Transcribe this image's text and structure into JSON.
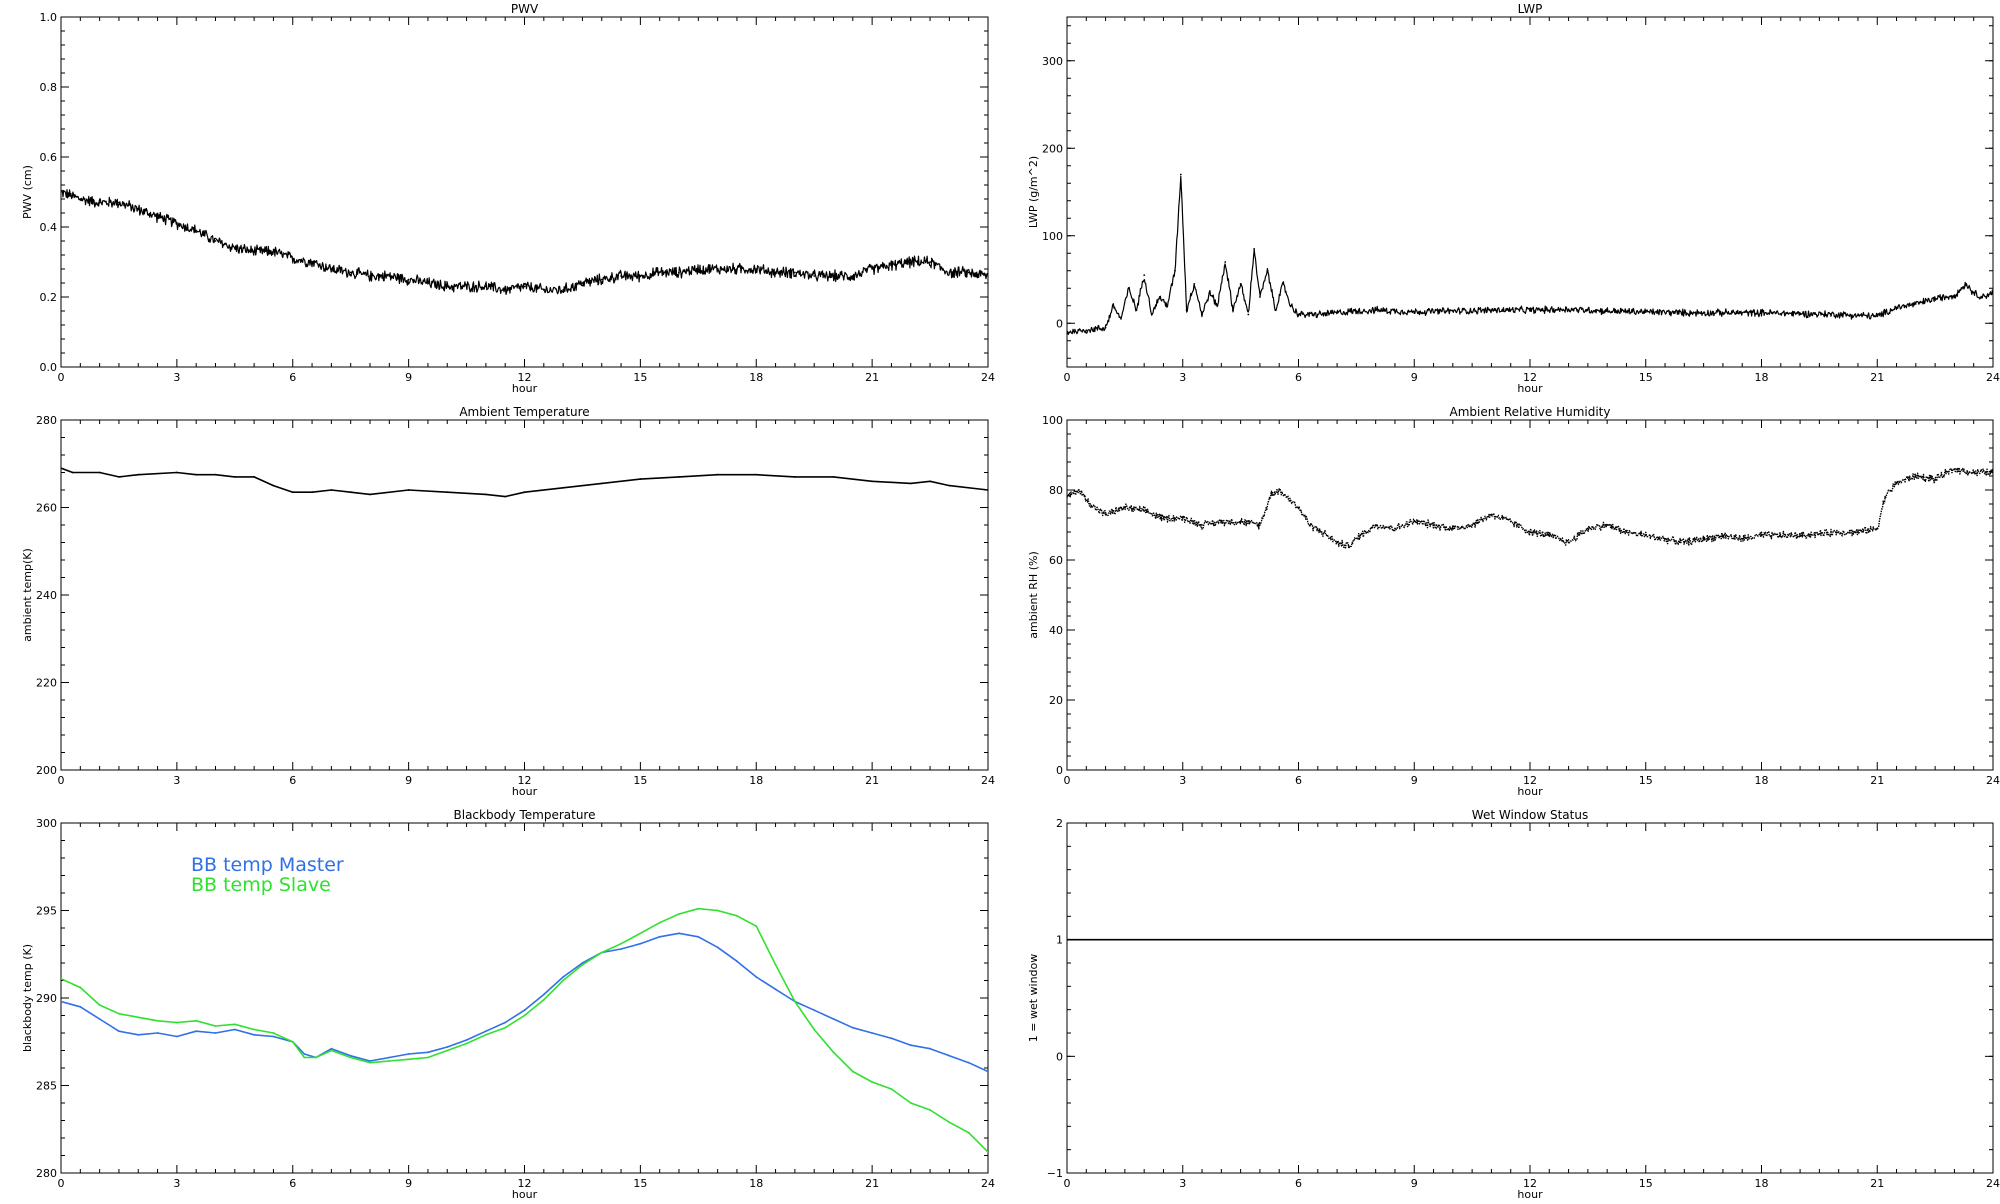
{
  "chart_data": [
    {
      "id": "pwv",
      "type": "line",
      "title": "PWV",
      "xlabel": "hour",
      "ylabel": "PWV (cm)",
      "xlim": [
        0,
        24
      ],
      "ylim": [
        0.0,
        1.0
      ],
      "xticks": [
        "0",
        "3",
        "6",
        "9",
        "12",
        "15",
        "18",
        "21",
        "24"
      ],
      "yticks": [
        "0.0",
        "0.2",
        "0.4",
        "0.6",
        "0.8",
        "1.0"
      ],
      "noise": 0.012,
      "series": [
        {
          "name": "",
          "color": "#000000",
          "x": [
            0,
            0.5,
            1,
            1.5,
            2,
            2.5,
            3,
            3.5,
            4,
            4.5,
            5,
            5.5,
            6,
            6.5,
            7,
            7.5,
            8,
            8.5,
            9,
            9.5,
            10,
            10.5,
            11,
            11.5,
            12,
            12.5,
            13,
            13.5,
            14,
            14.5,
            15,
            15.5,
            16,
            16.5,
            17,
            17.5,
            18,
            18.5,
            19,
            19.5,
            20,
            20.5,
            21,
            21.5,
            22,
            22.5,
            23,
            23.5,
            24
          ],
          "y": [
            0.5,
            0.48,
            0.47,
            0.47,
            0.45,
            0.43,
            0.41,
            0.39,
            0.36,
            0.34,
            0.33,
            0.33,
            0.31,
            0.3,
            0.28,
            0.27,
            0.26,
            0.26,
            0.25,
            0.24,
            0.23,
            0.23,
            0.23,
            0.22,
            0.23,
            0.22,
            0.22,
            0.24,
            0.25,
            0.26,
            0.26,
            0.27,
            0.27,
            0.28,
            0.28,
            0.28,
            0.28,
            0.27,
            0.27,
            0.26,
            0.26,
            0.26,
            0.28,
            0.29,
            0.3,
            0.3,
            0.27,
            0.27,
            0.26
          ]
        }
      ]
    },
    {
      "id": "lwp",
      "type": "line",
      "title": "LWP",
      "xlabel": "hour",
      "ylabel": "LWP (g/m^2)",
      "xlim": [
        0,
        24
      ],
      "ylim": [
        -50,
        350
      ],
      "xticks": [
        "0",
        "3",
        "6",
        "9",
        "12",
        "15",
        "18",
        "21",
        "24"
      ],
      "yticks": [
        "0",
        "100",
        "200",
        "300"
      ],
      "noise": 3,
      "series": [
        {
          "name": "",
          "color": "#000000",
          "x": [
            0,
            0.5,
            1,
            1.2,
            1.4,
            1.6,
            1.8,
            2,
            2.2,
            2.4,
            2.6,
            2.8,
            2.95,
            3.1,
            3.3,
            3.5,
            3.7,
            3.9,
            4.1,
            4.3,
            4.5,
            4.7,
            4.85,
            5,
            5.2,
            5.4,
            5.6,
            5.8,
            6,
            6.5,
            7,
            7.5,
            8,
            9,
            10,
            11,
            12,
            13,
            14,
            15,
            16,
            17,
            18,
            19,
            20,
            20.5,
            21,
            21.5,
            22,
            22.5,
            23,
            23.3,
            23.5,
            23.7,
            24
          ],
          "y": [
            -10,
            -8,
            -5,
            20,
            5,
            40,
            15,
            55,
            10,
            30,
            20,
            60,
            170,
            15,
            45,
            10,
            35,
            20,
            70,
            15,
            45,
            10,
            85,
            30,
            60,
            15,
            45,
            20,
            10,
            10,
            12,
            14,
            15,
            13,
            14,
            15,
            15,
            16,
            14,
            13,
            12,
            12,
            12,
            11,
            10,
            9,
            8,
            18,
            22,
            28,
            32,
            45,
            35,
            30,
            35
          ]
        }
      ]
    },
    {
      "id": "ambtemp",
      "type": "line",
      "title": "Ambient Temperature",
      "xlabel": "hour",
      "ylabel": "ambient temp(K)",
      "xlim": [
        0,
        24
      ],
      "ylim": [
        200,
        280
      ],
      "xticks": [
        "0",
        "3",
        "6",
        "9",
        "12",
        "15",
        "18",
        "21",
        "24"
      ],
      "yticks": [
        "200",
        "220",
        "240",
        "260",
        "280"
      ],
      "noise": 0,
      "series": [
        {
          "name": "",
          "color": "#000000",
          "x": [
            0,
            0.3,
            1,
            1.5,
            2,
            3,
            3.5,
            4,
            4.5,
            5,
            5.5,
            6,
            6.5,
            7,
            7.5,
            8,
            9,
            10,
            11,
            11.5,
            12,
            13,
            14,
            15,
            16,
            17,
            18,
            19,
            20,
            21,
            22,
            22.5,
            23,
            24
          ],
          "y": [
            269,
            268,
            268,
            267,
            267.5,
            268,
            267.5,
            267.5,
            267,
            267,
            265,
            263.5,
            263.5,
            264,
            263.5,
            263,
            264,
            263.5,
            263,
            262.5,
            263.5,
            264.5,
            265.5,
            266.5,
            267,
            267.5,
            267.5,
            267,
            267,
            266,
            265.5,
            266,
            265,
            264
          ]
        }
      ]
    },
    {
      "id": "ambrh",
      "type": "scatter",
      "title": "Ambient Relative Humidity",
      "xlabel": "hour",
      "ylabel": "ambient RH (%)",
      "xlim": [
        0,
        24
      ],
      "ylim": [
        0,
        100
      ],
      "xticks": [
        "0",
        "3",
        "6",
        "9",
        "12",
        "15",
        "18",
        "21",
        "24"
      ],
      "yticks": [
        "0",
        "20",
        "40",
        "60",
        "80",
        "100"
      ],
      "noise": 0.8,
      "series": [
        {
          "name": "",
          "color": "#000000",
          "x": [
            0,
            0.3,
            0.6,
            1,
            1.5,
            2,
            2.5,
            3,
            3.5,
            4,
            4.5,
            5,
            5.3,
            5.5,
            5.8,
            6,
            6.3,
            6.6,
            7,
            7.3,
            7.6,
            8,
            8.5,
            9,
            9.5,
            10,
            10.5,
            11,
            11.5,
            12,
            12.5,
            13,
            13.5,
            14,
            14.5,
            15,
            15.5,
            16,
            16.5,
            17,
            17.5,
            18,
            19,
            20,
            20.5,
            21,
            21.2,
            21.5,
            22,
            22.5,
            23,
            23.5,
            24
          ],
          "y": [
            78,
            80,
            76,
            73,
            75,
            74,
            72,
            72,
            70,
            71,
            71,
            70,
            79,
            80,
            77,
            75,
            70,
            68,
            65,
            64,
            67,
            70,
            69,
            71,
            70,
            69,
            70,
            73,
            71,
            68,
            67,
            65,
            69,
            70,
            68,
            67,
            66,
            65,
            66,
            67,
            66,
            67,
            67,
            68,
            68,
            69,
            78,
            82,
            84,
            83,
            86,
            85,
            85
          ]
        }
      ]
    },
    {
      "id": "bbtemp",
      "type": "line",
      "title": "Blackbody Temperature",
      "xlabel": "hour",
      "ylabel": "blackbody temp (K)",
      "xlim": [
        0,
        24
      ],
      "ylim": [
        280,
        300
      ],
      "xticks": [
        "0",
        "3",
        "6",
        "9",
        "12",
        "15",
        "18",
        "21",
        "24"
      ],
      "yticks": [
        "280",
        "285",
        "290",
        "295",
        "300"
      ],
      "legend": "top-left",
      "noise": 0,
      "series": [
        {
          "name": "BB temp Master",
          "color": "#3070e8",
          "x": [
            0,
            0.5,
            1,
            1.5,
            2,
            2.5,
            3,
            3.5,
            4,
            4.5,
            5,
            5.5,
            6,
            6.3,
            6.6,
            7,
            7.5,
            8,
            8.5,
            9,
            9.5,
            10,
            10.5,
            11,
            11.5,
            12,
            12.5,
            13,
            13.5,
            14,
            14.5,
            15,
            15.5,
            16,
            16.5,
            17,
            17.5,
            18,
            18.5,
            19,
            19.5,
            20,
            20.5,
            21,
            21.5,
            22,
            22.5,
            23,
            23.5,
            24
          ],
          "y": [
            289.8,
            289.5,
            288.8,
            288.1,
            287.9,
            288,
            287.8,
            288.1,
            288,
            288.2,
            287.9,
            287.8,
            287.5,
            286.8,
            286.6,
            287.1,
            286.7,
            286.4,
            286.6,
            286.8,
            286.9,
            287.2,
            287.6,
            288.1,
            288.6,
            289.3,
            290.2,
            291.2,
            292,
            292.6,
            292.8,
            293.1,
            293.5,
            293.7,
            293.5,
            292.9,
            292.1,
            291.2,
            290.5,
            289.8,
            289.3,
            288.8,
            288.3,
            288,
            287.7,
            287.3,
            287.1,
            286.7,
            286.3,
            285.8
          ]
        },
        {
          "name": "BB temp Slave",
          "color": "#30e030",
          "x": [
            0,
            0.5,
            1,
            1.5,
            2,
            2.5,
            3,
            3.5,
            4,
            4.5,
            5,
            5.5,
            6,
            6.3,
            6.6,
            7,
            7.5,
            8,
            8.5,
            9,
            9.5,
            10,
            10.5,
            11,
            11.5,
            12,
            12.5,
            13,
            13.5,
            14,
            14.5,
            15,
            15.5,
            16,
            16.5,
            17,
            17.5,
            18,
            18.5,
            19,
            19.5,
            20,
            20.5,
            21,
            21.5,
            22,
            22.5,
            23,
            23.5,
            24
          ],
          "y": [
            291.1,
            290.6,
            289.6,
            289.1,
            288.9,
            288.7,
            288.6,
            288.7,
            288.4,
            288.5,
            288.2,
            288,
            287.5,
            286.6,
            286.6,
            287,
            286.6,
            286.3,
            286.4,
            286.5,
            286.6,
            287,
            287.4,
            287.9,
            288.3,
            289,
            289.9,
            291,
            291.9,
            292.6,
            293.1,
            293.7,
            294.3,
            294.8,
            295.1,
            295,
            294.7,
            294.1,
            291.9,
            289.8,
            288.2,
            286.9,
            285.8,
            285.2,
            284.8,
            284,
            283.6,
            282.9,
            282.3,
            281.2
          ]
        }
      ]
    },
    {
      "id": "wetwin",
      "type": "line",
      "title": "Wet Window Status",
      "xlabel": "hour",
      "ylabel": "1 = wet window",
      "xlim": [
        0,
        24
      ],
      "ylim": [
        -1,
        2
      ],
      "xticks": [
        "0",
        "3",
        "6",
        "9",
        "12",
        "15",
        "18",
        "21",
        "24"
      ],
      "yticks": [
        "−1",
        "0",
        "1",
        "2"
      ],
      "noise": 0,
      "series": [
        {
          "name": "",
          "color": "#000000",
          "x": [
            0,
            24
          ],
          "y": [
            1,
            1
          ]
        }
      ]
    }
  ]
}
